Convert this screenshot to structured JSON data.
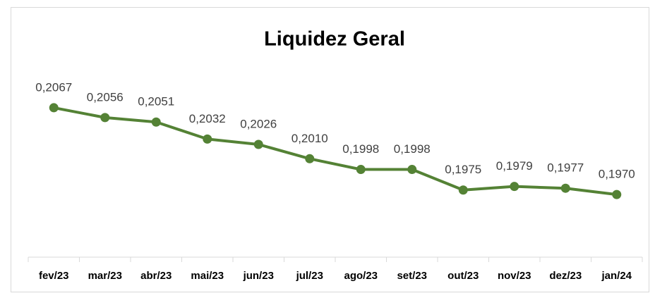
{
  "chart_data": {
    "type": "line",
    "title": "Liquidez Geral",
    "categories": [
      "fev/23",
      "mar/23",
      "abr/23",
      "mai/23",
      "jun/23",
      "jul/23",
      "ago/23",
      "set/23",
      "out/23",
      "nov/23",
      "dez/23",
      "jan/24"
    ],
    "values": [
      0.2067,
      0.2056,
      0.2051,
      0.2032,
      0.2026,
      0.201,
      0.1998,
      0.1998,
      0.1975,
      0.1979,
      0.1977,
      0.197
    ],
    "value_labels": [
      "0,2067",
      "0,2056",
      "0,2051",
      "0,2032",
      "0,2026",
      "0,2010",
      "0,1998",
      "0,1998",
      "0,1975",
      "0,1979",
      "0,1977",
      "0,1970"
    ],
    "color": "#548235",
    "ylim": [
      0.19,
      0.21
    ]
  }
}
